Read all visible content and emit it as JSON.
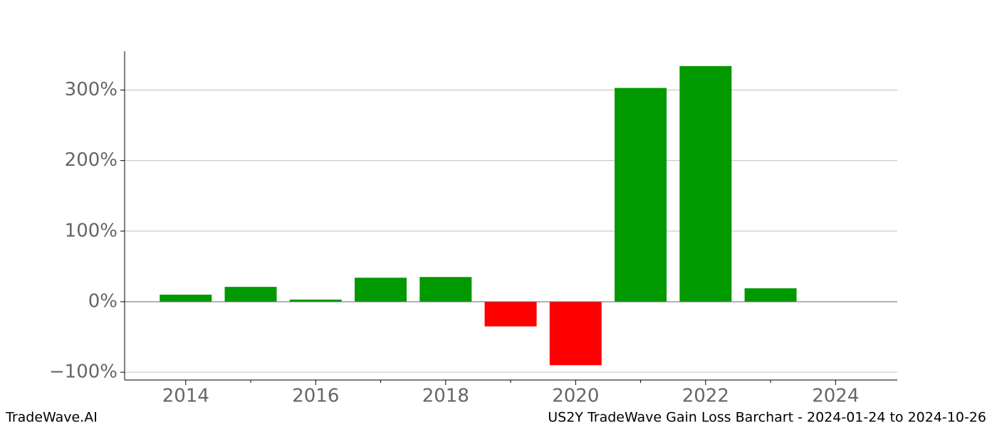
{
  "chart_data": {
    "type": "bar",
    "title": "US2Y TradeWave Gain Loss Barchart - 2024-01-24 to 2024-10-26",
    "brand": "TradeWave.AI",
    "x": [
      2014,
      2015,
      2016,
      2017,
      2018,
      2019,
      2020,
      2021,
      2022,
      2023
    ],
    "values": [
      10,
      21,
      3,
      34,
      35,
      -35,
      -90,
      303,
      334,
      19
    ],
    "positive_color": "#009900",
    "negative_color": "#ff0000",
    "xlim": [
      2013.06,
      2024.95
    ],
    "xticks": [
      2014,
      2016,
      2018,
      2020,
      2022,
      2024
    ],
    "xminorticks": [
      2015,
      2017,
      2019,
      2021,
      2023
    ],
    "ylim": [
      -111,
      355
    ],
    "yticks": [
      {
        "value": -100,
        "label": "−100%"
      },
      {
        "value": 0,
        "label": "0%"
      },
      {
        "value": 100,
        "label": "100%"
      },
      {
        "value": 200,
        "label": "200%"
      },
      {
        "value": 300,
        "label": "300%"
      }
    ],
    "grid": true
  }
}
